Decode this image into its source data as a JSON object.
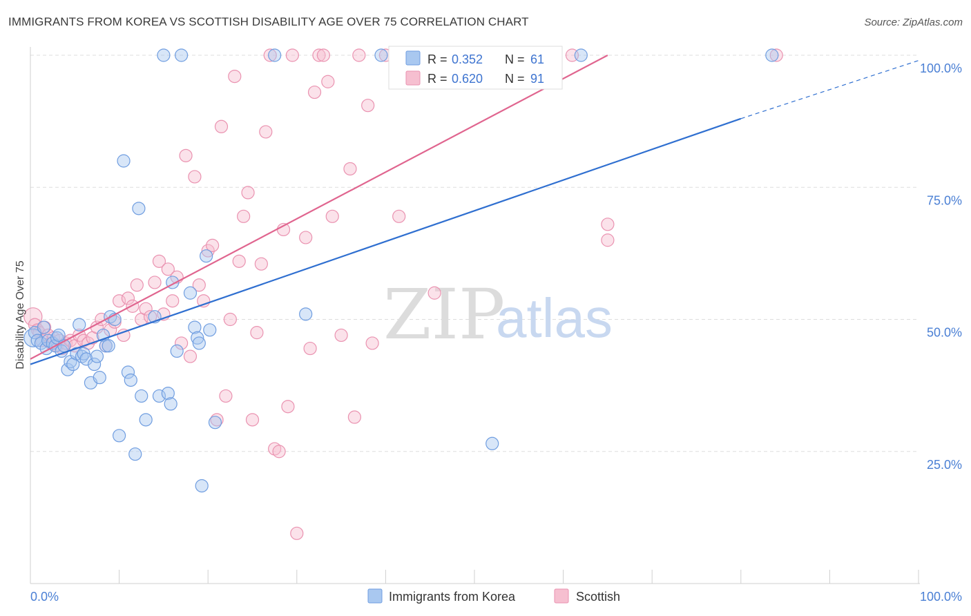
{
  "title": "IMMIGRANTS FROM KOREA VS SCOTTISH DISABILITY AGE OVER 75 CORRELATION CHART",
  "source": "Source: ZipAtlas.com",
  "watermark": {
    "zip": "ZIP",
    "atlas": "atlas"
  },
  "colors": {
    "blue_fill": "#a9c8f0",
    "blue_stroke": "#6f9de0",
    "blue_line": "#2f6fd0",
    "pink_fill": "#f6bfd0",
    "pink_stroke": "#ea92b0",
    "pink_line": "#e0658f",
    "grid": "#dddddd",
    "tick_label": "#4a7fd4"
  },
  "legend_box": {
    "rows": [
      {
        "r_label": "R = ",
        "r_value": "0.352",
        "n_label": "N = ",
        "n_value": "61",
        "color": "blue"
      },
      {
        "r_label": "R = ",
        "r_value": "0.620",
        "n_label": "N = ",
        "n_value": "91",
        "color": "pink"
      }
    ]
  },
  "chart_data": {
    "type": "scatter",
    "title": "IMMIGRANTS FROM KOREA VS SCOTTISH DISABILITY AGE OVER 75 CORRELATION CHART",
    "xlabel": "",
    "ylabel": "Disability Age Over 75",
    "xlim": [
      0,
      100
    ],
    "ylim": [
      0,
      100
    ],
    "x_tick_labels": [
      "0.0%",
      "100.0%"
    ],
    "y_tick_labels": [
      "25.0%",
      "50.0%",
      "75.0%",
      "100.0%"
    ],
    "y_ticks": [
      25,
      50,
      75,
      100
    ],
    "grid": true,
    "legend_position": "bottom",
    "series": [
      {
        "name": "Immigrants from Korea",
        "color": "blue",
        "trend": {
          "x0": 0,
          "y0": 41.5,
          "x1": 80,
          "y1": 88,
          "dashed_to_x": 100,
          "dashed_to_y": 99
        },
        "points": [
          [
            0.3,
            46.5
          ],
          [
            0.5,
            47.5
          ],
          [
            0.8,
            46.0
          ],
          [
            1.2,
            45.5
          ],
          [
            1.5,
            48.5
          ],
          [
            1.8,
            44.5
          ],
          [
            2.0,
            46.0
          ],
          [
            2.5,
            45.5
          ],
          [
            2.8,
            45.0
          ],
          [
            3.0,
            46.5
          ],
          [
            3.2,
            47.0
          ],
          [
            3.5,
            44.0
          ],
          [
            3.8,
            45.0
          ],
          [
            4.2,
            40.5
          ],
          [
            4.5,
            42.0
          ],
          [
            4.8,
            41.5
          ],
          [
            5.2,
            43.5
          ],
          [
            5.5,
            49.0
          ],
          [
            5.8,
            43.0
          ],
          [
            6.0,
            43.5
          ],
          [
            6.3,
            42.5
          ],
          [
            6.8,
            38.0
          ],
          [
            7.2,
            41.5
          ],
          [
            7.5,
            43.0
          ],
          [
            7.8,
            39.0
          ],
          [
            8.2,
            47.0
          ],
          [
            8.5,
            45.0
          ],
          [
            8.8,
            45.0
          ],
          [
            9.0,
            50.5
          ],
          [
            9.5,
            50.0
          ],
          [
            10.0,
            28.0
          ],
          [
            10.5,
            80.0
          ],
          [
            11.0,
            40.0
          ],
          [
            11.3,
            38.5
          ],
          [
            11.8,
            24.5
          ],
          [
            12.2,
            71.0
          ],
          [
            12.5,
            35.5
          ],
          [
            13.0,
            31.0
          ],
          [
            14.0,
            50.5
          ],
          [
            14.5,
            35.5
          ],
          [
            15.0,
            100.0
          ],
          [
            15.5,
            36.0
          ],
          [
            15.8,
            34.0
          ],
          [
            16.0,
            57.0
          ],
          [
            16.5,
            44.0
          ],
          [
            17.0,
            100.0
          ],
          [
            18.0,
            55.0
          ],
          [
            18.5,
            48.5
          ],
          [
            18.8,
            46.5
          ],
          [
            19.0,
            45.5
          ],
          [
            19.3,
            18.5
          ],
          [
            19.8,
            62.0
          ],
          [
            20.2,
            48.0
          ],
          [
            20.8,
            30.5
          ],
          [
            27.5,
            100.0
          ],
          [
            31.0,
            51.0
          ],
          [
            39.5,
            100.0
          ],
          [
            48.0,
            100.0
          ],
          [
            52.0,
            26.5
          ],
          [
            62.0,
            100.0
          ],
          [
            83.5,
            100.0
          ]
        ]
      },
      {
        "name": "Scottish",
        "color": "pink",
        "trend": {
          "x0": 0,
          "y0": 42.5,
          "x1": 65,
          "y1": 100
        },
        "points": [
          [
            0.3,
            50.5
          ],
          [
            0.5,
            49.0
          ],
          [
            0.8,
            48.0
          ],
          [
            1.0,
            47.5
          ],
          [
            1.3,
            46.0
          ],
          [
            1.6,
            48.5
          ],
          [
            2.0,
            47.0
          ],
          [
            2.3,
            45.5
          ],
          [
            2.6,
            46.5
          ],
          [
            3.0,
            45.0
          ],
          [
            3.3,
            46.0
          ],
          [
            3.6,
            44.5
          ],
          [
            4.0,
            45.5
          ],
          [
            4.5,
            46.0
          ],
          [
            5.0,
            45.0
          ],
          [
            5.5,
            47.0
          ],
          [
            6.0,
            46.0
          ],
          [
            6.5,
            45.5
          ],
          [
            7.0,
            46.5
          ],
          [
            7.5,
            48.5
          ],
          [
            8.0,
            50.0
          ],
          [
            8.5,
            45.0
          ],
          [
            9.0,
            48.0
          ],
          [
            9.5,
            49.5
          ],
          [
            10.0,
            53.5
          ],
          [
            10.5,
            47.0
          ],
          [
            11.0,
            54.0
          ],
          [
            11.5,
            52.5
          ],
          [
            12.0,
            56.5
          ],
          [
            12.5,
            50.0
          ],
          [
            13.0,
            52.0
          ],
          [
            13.5,
            50.5
          ],
          [
            14.0,
            57.0
          ],
          [
            14.5,
            61.0
          ],
          [
            15.0,
            51.0
          ],
          [
            15.5,
            59.5
          ],
          [
            16.0,
            53.5
          ],
          [
            16.5,
            58.0
          ],
          [
            17.0,
            45.5
          ],
          [
            17.5,
            81.0
          ],
          [
            18.0,
            43.0
          ],
          [
            18.5,
            77.0
          ],
          [
            19.0,
            56.5
          ],
          [
            19.5,
            53.5
          ],
          [
            20.0,
            63.0
          ],
          [
            20.5,
            64.0
          ],
          [
            21.0,
            31.0
          ],
          [
            21.5,
            86.5
          ],
          [
            22.0,
            35.5
          ],
          [
            22.5,
            50.0
          ],
          [
            23.0,
            96.0
          ],
          [
            23.5,
            61.0
          ],
          [
            24.0,
            69.5
          ],
          [
            24.5,
            74.0
          ],
          [
            25.0,
            31.0
          ],
          [
            25.5,
            47.5
          ],
          [
            26.0,
            60.5
          ],
          [
            26.5,
            85.5
          ],
          [
            27.0,
            100.0
          ],
          [
            27.5,
            25.5
          ],
          [
            28.0,
            25.0
          ],
          [
            28.5,
            67.0
          ],
          [
            29.0,
            33.5
          ],
          [
            29.5,
            100.0
          ],
          [
            30.0,
            9.5
          ],
          [
            31.0,
            65.5
          ],
          [
            31.5,
            44.5
          ],
          [
            32.0,
            93.0
          ],
          [
            32.5,
            100.0
          ],
          [
            33.0,
            100.0
          ],
          [
            33.5,
            95.0
          ],
          [
            34.0,
            69.5
          ],
          [
            35.0,
            47.0
          ],
          [
            36.0,
            78.5
          ],
          [
            36.5,
            31.5
          ],
          [
            37.0,
            100.0
          ],
          [
            38.0,
            90.5
          ],
          [
            38.5,
            45.5
          ],
          [
            40.0,
            100.0
          ],
          [
            41.5,
            69.5
          ],
          [
            45.0,
            100.0
          ],
          [
            45.5,
            55.0
          ],
          [
            47.0,
            100.0
          ],
          [
            49.0,
            100.0
          ],
          [
            51.0,
            100.0
          ],
          [
            55.0,
            100.0
          ],
          [
            58.0,
            100.0
          ],
          [
            61.0,
            100.0
          ],
          [
            65.0,
            68.0
          ],
          [
            65.0,
            65.0
          ],
          [
            84.0,
            100.0
          ]
        ]
      }
    ]
  }
}
